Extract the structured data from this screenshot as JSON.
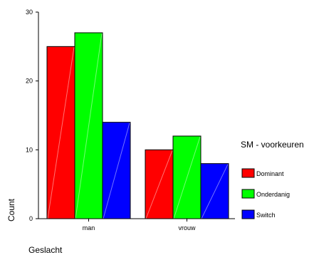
{
  "chart_data": {
    "type": "bar",
    "categories": [
      "man",
      "vrouw"
    ],
    "series": [
      {
        "name": "Dominant",
        "values": [
          25,
          10
        ],
        "color": "#ff0000"
      },
      {
        "name": "Onderdanig",
        "values": [
          27,
          12
        ],
        "color": "#00ff00"
      },
      {
        "name": "Switch",
        "values": [
          14,
          8
        ],
        "color": "#0000ff"
      }
    ],
    "xlabel": "Geslacht",
    "ylabel": "Count",
    "ylim": [
      0,
      30
    ],
    "yticks": [
      0,
      10,
      20,
      30
    ],
    "grid": false,
    "legend_title": "SM - voorkeuren",
    "legend_position": "right"
  }
}
